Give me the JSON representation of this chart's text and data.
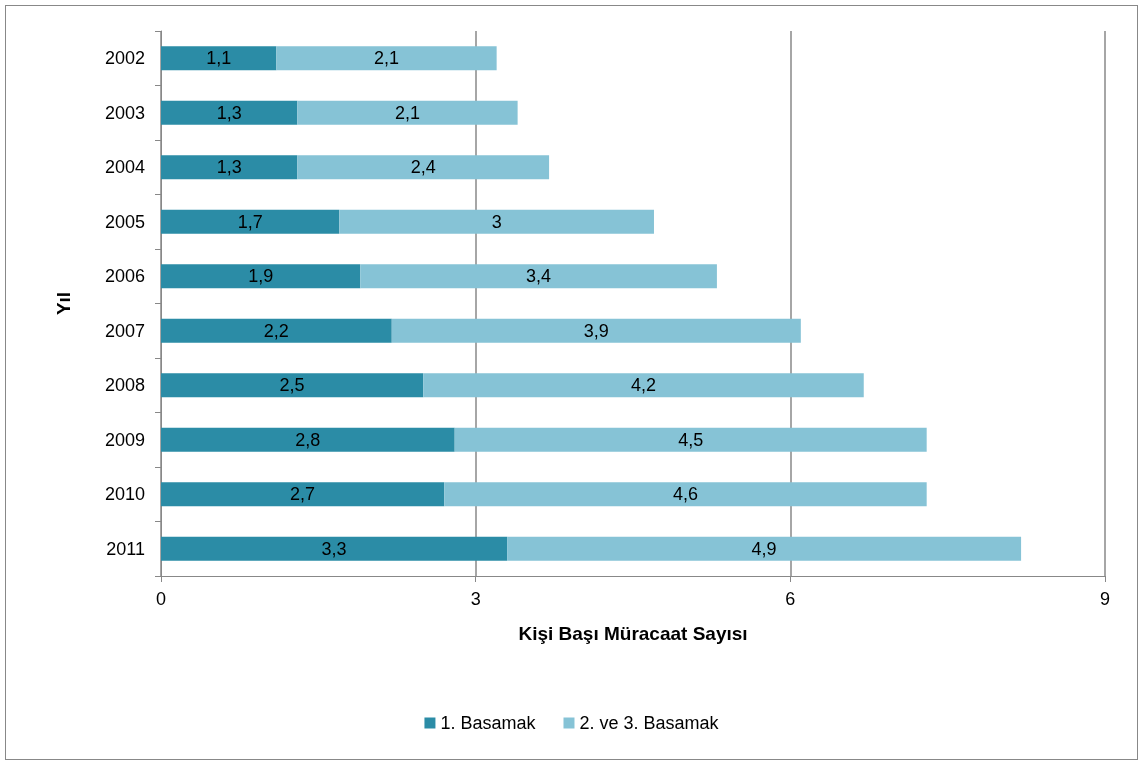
{
  "chart_data": {
    "type": "bar",
    "orientation": "horizontal",
    "stacked": true,
    "xlabel": "Kişi Başı Müracaat Sayısı",
    "ylabel": "Yıl",
    "categories": [
      "2002",
      "2003",
      "2004",
      "2005",
      "2006",
      "2007",
      "2008",
      "2009",
      "2010",
      "2011"
    ],
    "series": [
      {
        "name": "1. Basamak",
        "color": "#2b8ca6",
        "values": [
          1.1,
          1.3,
          1.3,
          1.7,
          1.9,
          2.2,
          2.5,
          2.8,
          2.7,
          3.3
        ],
        "value_labels": [
          "1,1",
          "1,3",
          "1,3",
          "1,7",
          "1,9",
          "2,2",
          "2,5",
          "2,8",
          "2,7",
          "3,3"
        ]
      },
      {
        "name": "2. ve 3. Basamak",
        "color": "#86c3d6",
        "values": [
          2.1,
          2.1,
          2.4,
          3,
          3.4,
          3.9,
          4.2,
          4.5,
          4.6,
          4.9
        ],
        "value_labels": [
          "2,1",
          "2,1",
          "2,4",
          "3",
          "3,4",
          "3,9",
          "4,2",
          "4,5",
          "4,6",
          "4,9"
        ]
      }
    ],
    "xlim": [
      0,
      9
    ],
    "xticks": [
      0,
      3,
      6,
      9
    ],
    "grid": "x",
    "legend": "bottom"
  }
}
